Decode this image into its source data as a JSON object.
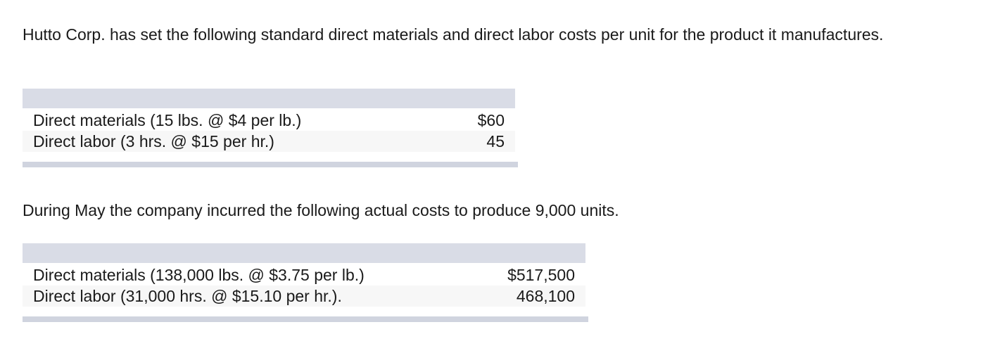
{
  "intro": "Hutto Corp. has set the following standard direct materials and direct labor costs per unit for the product it manufactures.",
  "standard_table": {
    "rows": [
      {
        "label": "Direct materials (15 lbs. @ $4 per lb.)",
        "amount": "$60"
      },
      {
        "label": "Direct labor (3 hrs. @ $15 per hr.)",
        "amount": "45"
      }
    ]
  },
  "actual_intro": "During May the company incurred the following actual costs to produce 9,000 units.",
  "actual_table": {
    "rows": [
      {
        "label": "Direct materials (138,000 lbs. @ $3.75 per lb.)",
        "amount": "$517,500"
      },
      {
        "label": "Direct labor (31,000 hrs. @ $15.10 per hr.).",
        "amount": "468,100"
      }
    ]
  }
}
